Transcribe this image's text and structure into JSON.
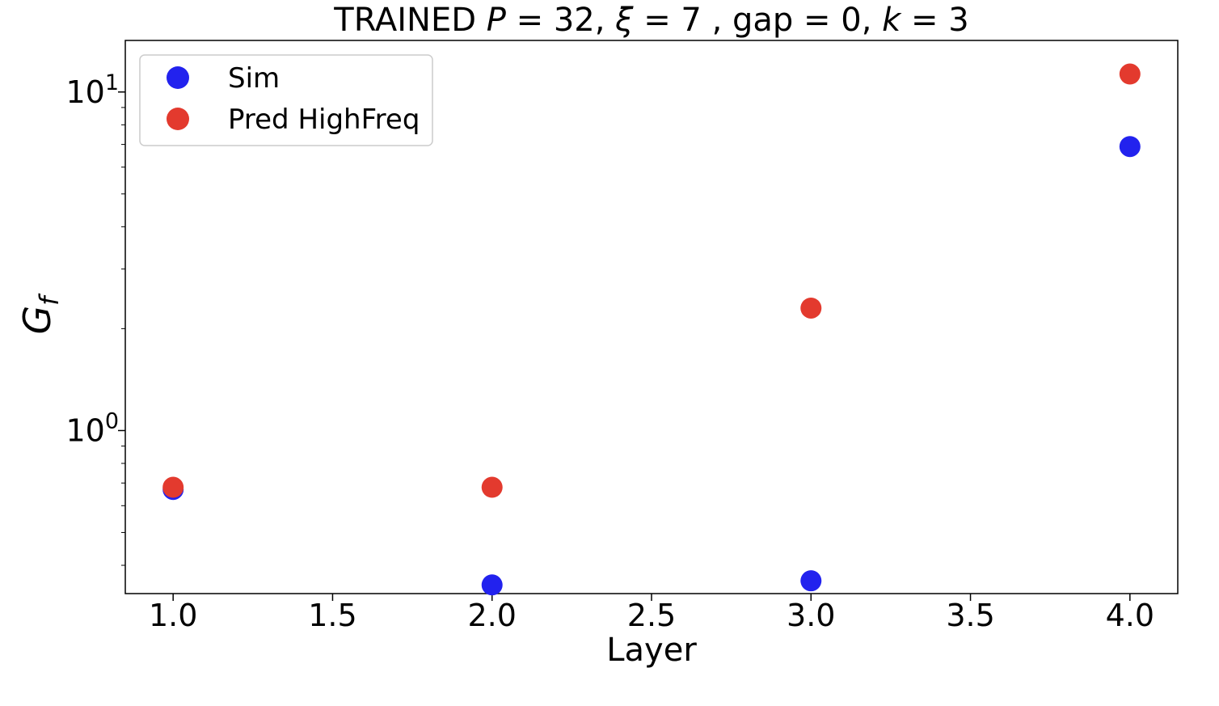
{
  "chart_data": {
    "type": "scatter",
    "title": "TRAINED P = 32, ξ = 7 , gap  = 0, k = 3",
    "title_parts": {
      "prefix": "TRAINED ",
      "p_sym": "P",
      "p_val": " = 32, ",
      "xi_sym": "ξ",
      "xi_val": " = 7 , gap  = 0, ",
      "k_sym": "k",
      "k_val": " = 3"
    },
    "xlabel": "Layer",
    "ylabel": "G",
    "ylabel_sub": "f",
    "xscale": "linear",
    "yscale": "log",
    "xlim": [
      0.85,
      4.15
    ],
    "ylim": [
      0.33,
      14.2
    ],
    "xticks": [
      {
        "value": 1.0,
        "label": "1.0"
      },
      {
        "value": 1.5,
        "label": "1.5"
      },
      {
        "value": 2.0,
        "label": "2.0"
      },
      {
        "value": 2.5,
        "label": "2.5"
      },
      {
        "value": 3.0,
        "label": "3.0"
      },
      {
        "value": 3.5,
        "label": "3.5"
      },
      {
        "value": 4.0,
        "label": "4.0"
      }
    ],
    "yticks_major": [
      {
        "value": 1,
        "base": "10",
        "exp": "0"
      },
      {
        "value": 10,
        "base": "10",
        "exp": "1"
      }
    ],
    "yticks_minor": [
      0.4,
      0.5,
      0.6,
      0.7,
      0.8,
      0.9,
      2,
      3,
      4,
      5,
      6,
      7,
      8,
      9
    ],
    "grid": false,
    "legend_position": "upper left",
    "series": [
      {
        "name": "Sim",
        "color": "#2222ee",
        "x": [
          1,
          2,
          3,
          4
        ],
        "y": [
          0.67,
          0.35,
          0.36,
          6.9
        ]
      },
      {
        "name": "Pred HighFreq",
        "color": "#e33a2e",
        "x": [
          1,
          2,
          3,
          4
        ],
        "y": [
          0.68,
          0.68,
          2.3,
          11.3
        ]
      }
    ]
  }
}
